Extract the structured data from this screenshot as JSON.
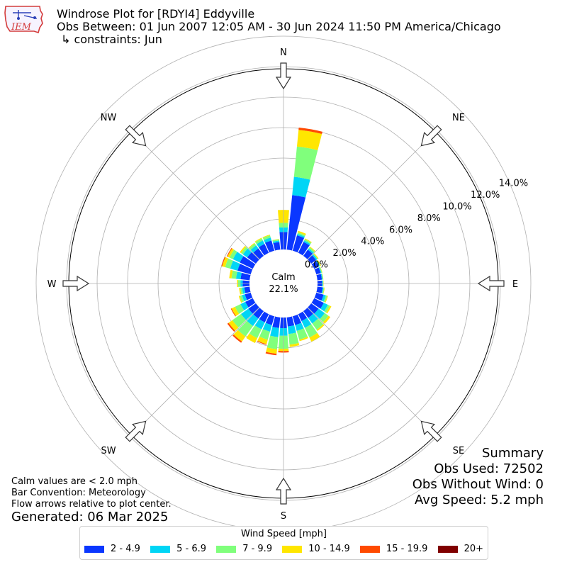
{
  "header": {
    "title": "Windrose Plot for [RDYI4] Eddyville",
    "subtitle": "Obs Between: 01 Jun 2007 12:05 AM - 30 Jun 2024 11:50 PM America/Chicago",
    "constraints": "↳ constraints: Jun",
    "logo_text": "IEM"
  },
  "notes": {
    "calm_note": "Calm values are < 2.0 mph",
    "bar_convention": "Bar Convention: Meteorology",
    "flow_note": "Flow arrows relative to plot center.",
    "generated": "Generated: 06 Mar 2025"
  },
  "summary": {
    "heading": "Summary",
    "obs_used": "Obs Used: 72502",
    "obs_without_wind": "Obs Without Wind: 0",
    "avg_speed": "Avg Speed: 5.2 mph"
  },
  "legend": {
    "title": "Wind Speed [mph]",
    "items": [
      {
        "label": "2 - 4.9",
        "color": "#0a37ff"
      },
      {
        "label": "5 - 6.9",
        "color": "#00d5f5"
      },
      {
        "label": "7 - 9.9",
        "color": "#80ff7c"
      },
      {
        "label": "10 - 14.9",
        "color": "#ffe600"
      },
      {
        "label": "15 - 19.9",
        "color": "#ff4a00"
      },
      {
        "label": "20+",
        "color": "#800000"
      }
    ]
  },
  "chart_data": {
    "type": "windrose",
    "center_label": "Calm",
    "calm_value": "22.1%",
    "radial_tick_labels": [
      "0.0%",
      "2.0%",
      "4.0%",
      "6.0%",
      "8.0%",
      "10.0%",
      "12.0%",
      "14.0%"
    ],
    "radial_ticks": [
      0,
      2,
      4,
      6,
      8,
      10,
      12,
      14
    ],
    "radial_max": 14,
    "direction_labels": [
      "N",
      "NE",
      "E",
      "SE",
      "S",
      "SW",
      "W",
      "NW"
    ],
    "speed_bins": [
      "2 - 4.9",
      "5 - 6.9",
      "7 - 9.9",
      "10 - 14.9",
      "15 - 19.9",
      "20+"
    ],
    "directions_deg": [
      0,
      10,
      20,
      30,
      40,
      50,
      60,
      70,
      80,
      90,
      100,
      110,
      120,
      130,
      140,
      150,
      160,
      170,
      180,
      190,
      200,
      210,
      220,
      230,
      240,
      250,
      260,
      270,
      280,
      290,
      300,
      310,
      320,
      330,
      340,
      350
    ],
    "cumulative_percent": [
      [
        1.15,
        1.45,
        1.75,
        2.6,
        2.6,
        2.6
      ],
      [
        3.6,
        4.8,
        6.8,
        7.9,
        8.05,
        8.05
      ],
      [
        1.05,
        1.15,
        1.25,
        1.35,
        1.35,
        1.35
      ],
      [
        0.8,
        0.9,
        1.0,
        1.05,
        1.05,
        1.05
      ],
      [
        0.5,
        0.6,
        0.7,
        0.75,
        0.75,
        0.75
      ],
      [
        0.4,
        0.5,
        0.55,
        0.6,
        0.6,
        0.6
      ],
      [
        0.35,
        0.4,
        0.45,
        0.5,
        0.5,
        0.5
      ],
      [
        0.3,
        0.35,
        0.4,
        0.42,
        0.42,
        0.42
      ],
      [
        0.3,
        0.35,
        0.38,
        0.4,
        0.4,
        0.4
      ],
      [
        0.3,
        0.35,
        0.38,
        0.4,
        0.4,
        0.4
      ],
      [
        0.35,
        0.4,
        0.45,
        0.48,
        0.48,
        0.48
      ],
      [
        0.5,
        0.65,
        0.75,
        0.8,
        0.8,
        0.8
      ],
      [
        0.7,
        1.0,
        1.15,
        1.25,
        1.25,
        1.25
      ],
      [
        0.6,
        1.1,
        1.4,
        1.55,
        1.55,
        1.55
      ],
      [
        0.55,
        1.0,
        1.5,
        1.6,
        1.6,
        1.6
      ],
      [
        0.5,
        1.0,
        1.7,
        2.0,
        2.0,
        2.0
      ],
      [
        0.6,
        1.0,
        1.6,
        1.7,
        1.7,
        1.7
      ],
      [
        0.6,
        1.1,
        1.8,
        1.95,
        1.95,
        1.95
      ],
      [
        0.7,
        1.2,
        2.05,
        2.2,
        2.3,
        2.3
      ],
      [
        0.7,
        1.3,
        2.1,
        2.4,
        2.5,
        2.5
      ],
      [
        0.6,
        1.05,
        1.6,
        1.9,
        1.95,
        1.95
      ],
      [
        0.6,
        1.1,
        1.75,
        2.1,
        2.1,
        2.1
      ],
      [
        0.6,
        1.2,
        2.05,
        2.45,
        2.55,
        2.55
      ],
      [
        0.6,
        1.2,
        1.9,
        2.2,
        2.3,
        2.3
      ],
      [
        0.55,
        0.9,
        1.3,
        1.55,
        1.6,
        1.6
      ],
      [
        0.4,
        0.6,
        0.75,
        0.82,
        0.82,
        0.82
      ],
      [
        0.35,
        0.5,
        0.62,
        0.7,
        0.7,
        0.7
      ],
      [
        0.45,
        0.6,
        0.75,
        0.82,
        0.82,
        0.82
      ],
      [
        0.6,
        0.9,
        1.2,
        1.35,
        1.35,
        1.35
      ],
      [
        0.9,
        1.4,
        1.75,
        1.95,
        2.0,
        2.0
      ],
      [
        0.95,
        1.45,
        1.7,
        1.85,
        1.9,
        1.9
      ],
      [
        0.7,
        1.05,
        1.2,
        1.3,
        1.3,
        1.3
      ],
      [
        0.6,
        0.85,
        1.0,
        1.05,
        1.05,
        1.05
      ],
      [
        0.65,
        0.9,
        1.05,
        1.1,
        1.1,
        1.1
      ],
      [
        0.7,
        0.9,
        1.05,
        1.1,
        1.1,
        1.1
      ],
      [
        0.5,
        0.6,
        0.68,
        0.7,
        0.7,
        0.7
      ]
    ]
  }
}
